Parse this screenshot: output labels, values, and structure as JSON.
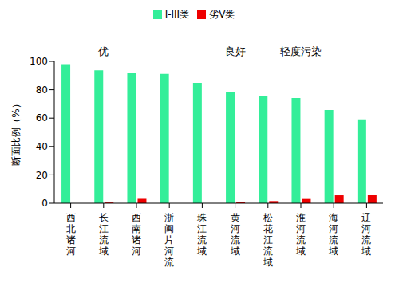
{
  "chart_data": {
    "type": "bar",
    "y_label": "断面比例（%）",
    "categories": [
      "西北诸河",
      "长江流域",
      "西南诸河",
      "浙闽片河流",
      "珠江流域",
      "黄河流域",
      "松花江流域",
      "淮河流域",
      "海河流域",
      "辽河流域"
    ],
    "series": [
      {
        "name": "I-III类",
        "color": "#33EE99",
        "values": [
          98.1,
          93.7,
          92.1,
          91.2,
          84.8,
          78.2,
          75.8,
          74.1,
          65.8,
          59.1
        ]
      },
      {
        "name": "劣V类",
        "color": "#EE0000",
        "values": [
          0,
          0.5,
          3.1,
          0,
          0,
          0.8,
          1.5,
          3.0,
          5.6,
          5.7
        ]
      }
    ],
    "annotations": [
      {
        "text": "优",
        "x": "长江流域"
      },
      {
        "text": "良好",
        "x": "黄河流域"
      },
      {
        "text": "轻度污染",
        "x": "淮河流域"
      }
    ],
    "ylim": [
      0,
      100
    ],
    "yticks": [
      0,
      20,
      40,
      60,
      80,
      100
    ],
    "grid": false,
    "legend": "top"
  }
}
